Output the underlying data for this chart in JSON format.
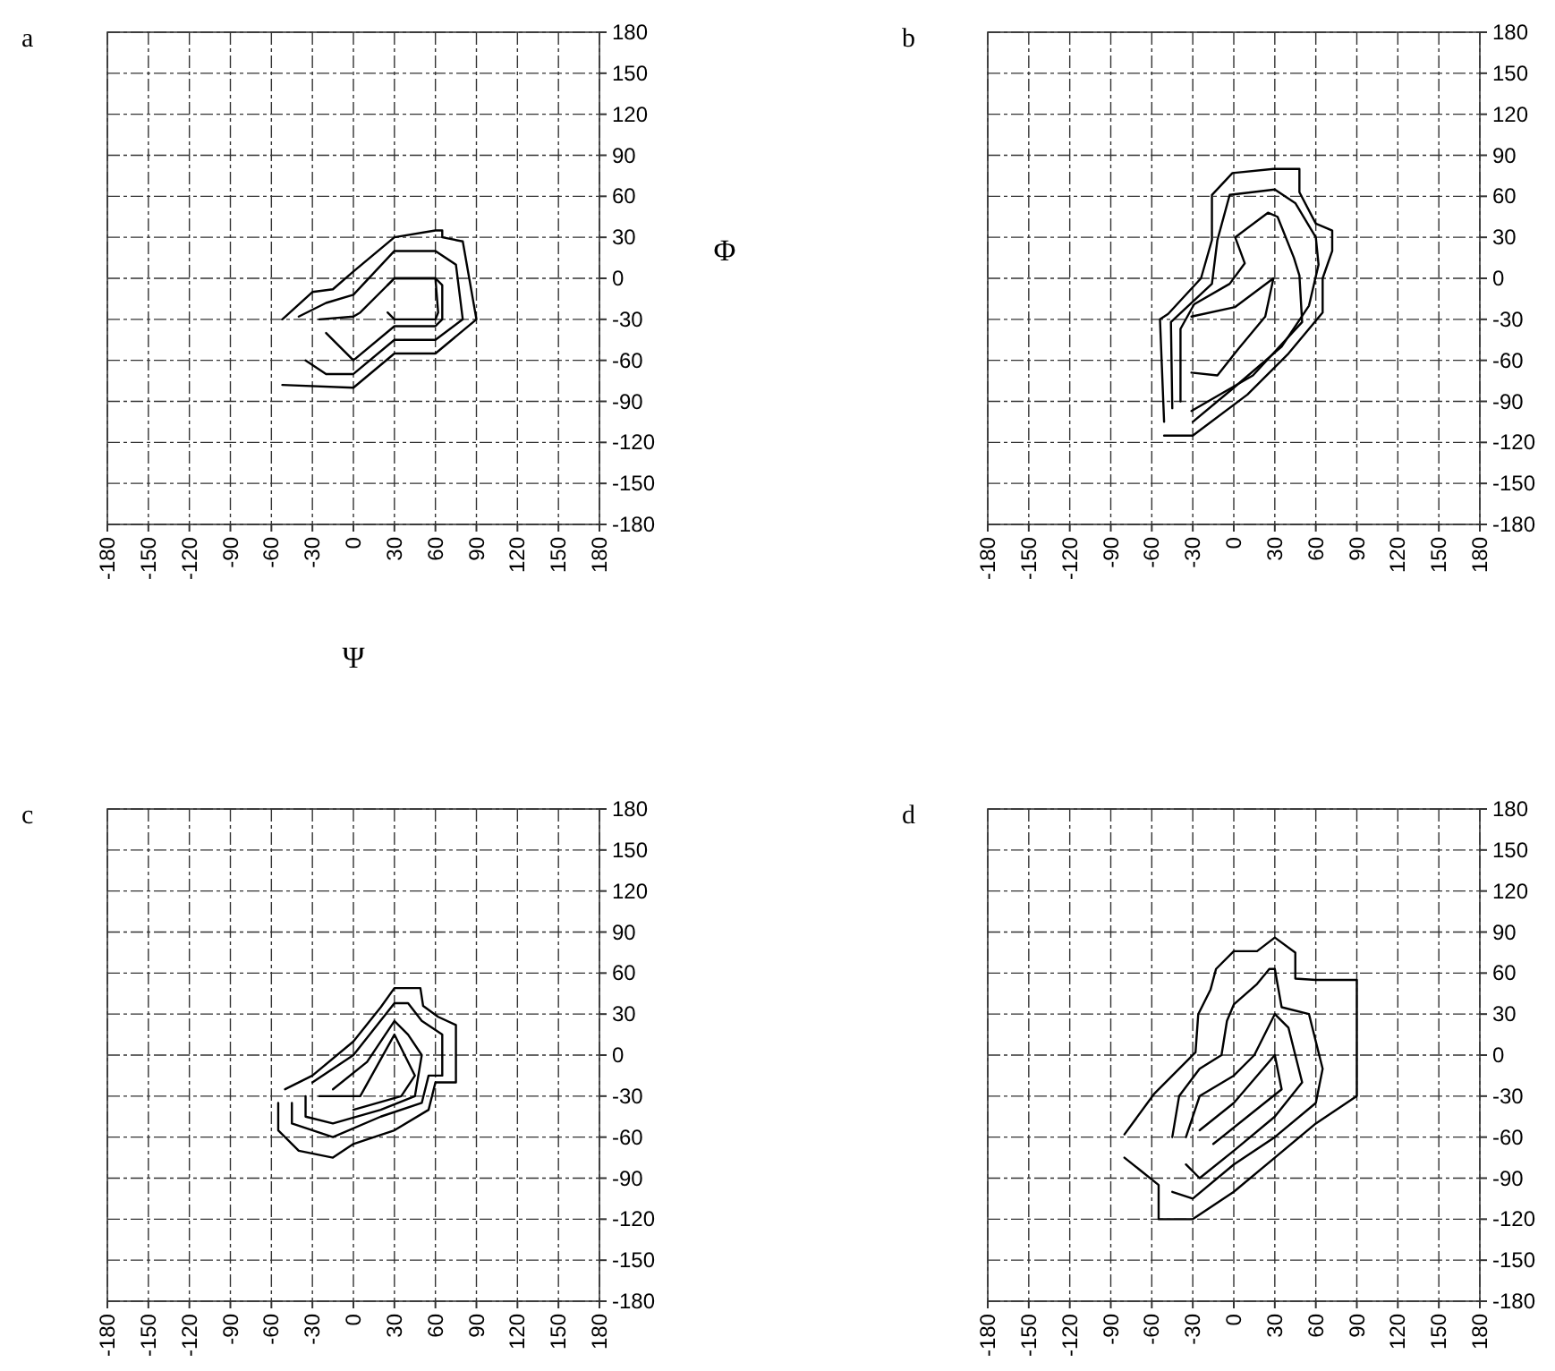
{
  "chart_data": [
    {
      "type": "line",
      "title": "a",
      "xlabel": "Ψ",
      "ylabel": "Φ",
      "xlim": [
        -180,
        180
      ],
      "ylim": [
        -180,
        180
      ],
      "xticks": [
        -180,
        -150,
        -120,
        -90,
        -60,
        -30,
        0,
        30,
        60,
        90,
        120,
        150,
        180
      ],
      "yticks": [
        -180,
        -150,
        -120,
        -90,
        -60,
        -30,
        0,
        30,
        60,
        90,
        120,
        150,
        180
      ],
      "grid": true,
      "series": [
        {
          "color": "#000000",
          "x": [
            -52,
            -30,
            -15,
            0,
            30,
            60,
            65,
            65,
            80,
            90,
            60,
            30,
            0,
            -52
          ],
          "values": [
            -30,
            -10,
            -8,
            5,
            30,
            35,
            35,
            30,
            27,
            -30,
            -55,
            -55,
            -80,
            -78
          ]
        },
        {
          "color": "#000000",
          "x": [
            -40,
            -20,
            0,
            30,
            60,
            75,
            80,
            60,
            30,
            0,
            -20,
            -35
          ],
          "values": [
            -28,
            -18,
            -12,
            20,
            20,
            10,
            -30,
            -45,
            -45,
            -70,
            -70,
            -60
          ]
        },
        {
          "color": "#000000",
          "x": [
            -25,
            0,
            5,
            30,
            60,
            65,
            65,
            60,
            30,
            0,
            -20
          ],
          "values": [
            -30,
            -28,
            -25,
            0,
            0,
            -5,
            -30,
            -35,
            -35,
            -60,
            -40
          ]
        },
        {
          "color": "#000000",
          "x": [
            25,
            30,
            60,
            62,
            60,
            30,
            25
          ],
          "values": [
            -5,
            0,
            0,
            -25,
            -30,
            -30,
            -25
          ]
        }
      ]
    },
    {
      "type": "line",
      "title": "b",
      "xlim": [
        -180,
        180
      ],
      "ylim": [
        -180,
        180
      ],
      "xticks": [
        -180,
        -150,
        -120,
        -90,
        -60,
        -30,
        0,
        30,
        60,
        90,
        120,
        150,
        180
      ],
      "yticks": [
        -180,
        -150,
        -120,
        -90,
        -60,
        -30,
        0,
        30,
        60,
        90,
        120,
        150,
        180
      ],
      "grid": true,
      "series": [
        {
          "color": "#000000",
          "x": [
            -51,
            -54,
            -48,
            -24,
            -16,
            -16,
            -1,
            29,
            48,
            48,
            60,
            72,
            72,
            65,
            65,
            40,
            10,
            -30,
            -51
          ],
          "values": [
            -105,
            -30,
            -26,
            0,
            28,
            61,
            77,
            80,
            80,
            63,
            40,
            35,
            20,
            0,
            -25,
            -55,
            -85,
            -115,
            -115
          ]
        },
        {
          "color": "#000000",
          "x": [
            -45,
            -46,
            -16,
            -12,
            -3,
            30,
            45,
            60,
            62,
            55,
            35,
            0,
            -30
          ],
          "values": [
            -95,
            -32,
            -4,
            28,
            61,
            65,
            55,
            30,
            10,
            -20,
            -50,
            -80,
            -105
          ]
        },
        {
          "color": "#000000",
          "x": [
            -39,
            -39,
            -29,
            -3,
            8,
            1,
            25,
            32,
            44,
            48,
            50,
            14,
            -31
          ],
          "values": [
            -90,
            -37,
            -19,
            -4,
            11,
            30,
            48,
            45,
            15,
            2,
            -32,
            -71,
            -97
          ]
        },
        {
          "color": "#000000",
          "x": [
            -31,
            1,
            29,
            23,
            3,
            -12,
            -31
          ],
          "values": [
            -28,
            -21,
            0,
            -28,
            -52,
            -71,
            -69
          ]
        }
      ]
    },
    {
      "type": "line",
      "title": "c",
      "xlim": [
        -180,
        180
      ],
      "ylim": [
        -180,
        180
      ],
      "xticks": [
        -180,
        -150,
        -120,
        -90,
        -60,
        -30,
        0,
        30,
        60,
        90,
        120,
        150,
        180
      ],
      "yticks": [
        -180,
        -150,
        -120,
        -90,
        -60,
        -30,
        0,
        30,
        60,
        90,
        120,
        150,
        180
      ],
      "grid": true,
      "series": [
        {
          "color": "#000000",
          "x": [
            -55,
            -55,
            -40,
            -15,
            0,
            30,
            55,
            60,
            75,
            75,
            62,
            51,
            49,
            30,
            20,
            0,
            -30,
            -50
          ],
          "values": [
            -35,
            -55,
            -70,
            -75,
            -65,
            -55,
            -40,
            -20,
            -20,
            22,
            28,
            36,
            49,
            49,
            35,
            10,
            -15,
            -25
          ]
        },
        {
          "color": "#000000",
          "x": [
            -45,
            -45,
            -15,
            20,
            50,
            55,
            65,
            65,
            50,
            40,
            30,
            0,
            -30
          ],
          "values": [
            -35,
            -50,
            -60,
            -45,
            -35,
            -15,
            -15,
            15,
            25,
            38,
            38,
            0,
            -20
          ]
        },
        {
          "color": "#000000",
          "x": [
            -35,
            -35,
            -15,
            20,
            45,
            50,
            40,
            30,
            10,
            -15
          ],
          "values": [
            -30,
            -45,
            -50,
            -40,
            -30,
            0,
            15,
            25,
            -5,
            -25
          ]
        },
        {
          "color": "#000000",
          "x": [
            -25,
            5,
            30,
            45,
            35,
            0
          ],
          "values": [
            -30,
            -30,
            15,
            -15,
            -30,
            -40
          ]
        }
      ]
    },
    {
      "type": "line",
      "title": "d",
      "xlim": [
        -180,
        180
      ],
      "ylim": [
        -180,
        180
      ],
      "xticks": [
        -180,
        -150,
        -120,
        -90,
        -60,
        -30,
        0,
        30,
        60,
        90,
        120,
        150,
        180
      ],
      "yticks": [
        -180,
        -150,
        -120,
        -90,
        -60,
        -30,
        0,
        30,
        60,
        90,
        120,
        150,
        180
      ],
      "grid": true,
      "series": [
        {
          "color": "#000000",
          "x": [
            -80,
            -58,
            -28,
            -26,
            -17,
            -13,
            0,
            17,
            30,
            45,
            45,
            60,
            90,
            90,
            60,
            30,
            0,
            -30,
            -55,
            -55,
            -80
          ],
          "values": [
            -58,
            -28,
            2,
            30,
            48,
            63,
            76,
            76,
            86,
            75,
            56,
            55,
            55,
            -30,
            -50,
            -75,
            -100,
            -120,
            -120,
            -95,
            -75
          ]
        },
        {
          "color": "#000000",
          "x": [
            -45,
            -40,
            -25,
            -9,
            -5,
            0,
            17,
            26,
            30,
            35,
            55,
            65,
            60,
            30,
            0,
            -30,
            -45
          ],
          "values": [
            -60,
            -30,
            -10,
            0,
            25,
            37,
            52,
            63,
            63,
            35,
            30,
            -10,
            -35,
            -60,
            -80,
            -105,
            -100
          ]
        },
        {
          "color": "#000000",
          "x": [
            -35,
            -25,
            0,
            15,
            30,
            40,
            50,
            30,
            0,
            -25,
            -35
          ],
          "values": [
            -60,
            -30,
            -15,
            0,
            30,
            20,
            -20,
            -45,
            -70,
            -90,
            -80
          ]
        },
        {
          "color": "#000000",
          "x": [
            -25,
            0,
            30,
            35,
            10,
            -15
          ],
          "values": [
            -55,
            -35,
            0,
            -25,
            -45,
            -65
          ]
        }
      ]
    }
  ]
}
